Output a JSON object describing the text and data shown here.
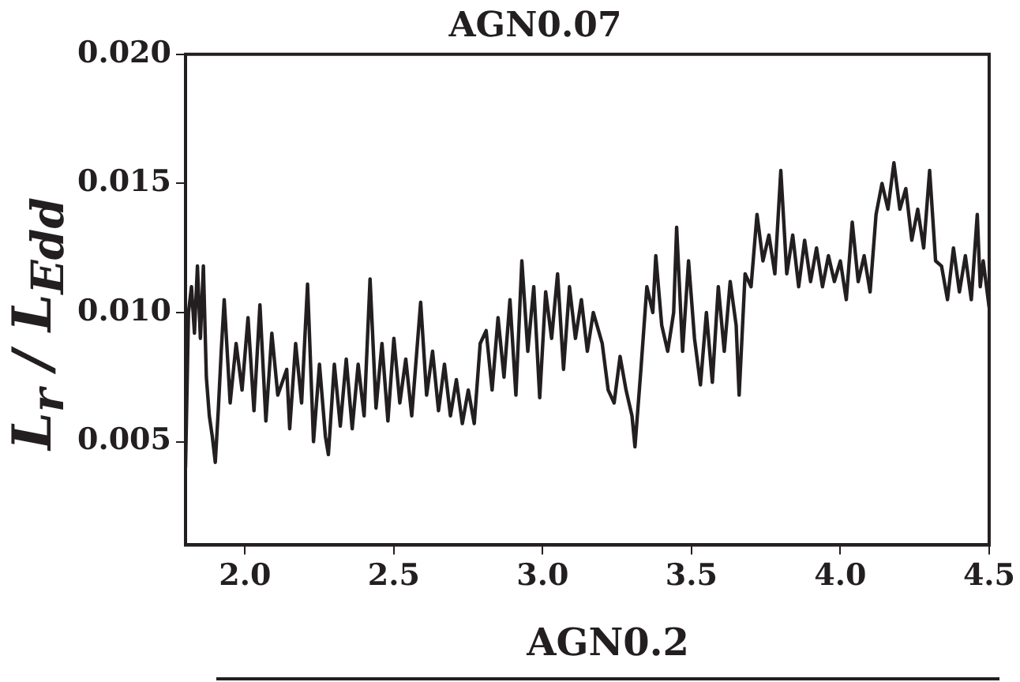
{
  "chart_data": {
    "type": "line",
    "title": "AGN0.07",
    "ylabel": "L$_{r}$ / L$_{Edd}$",
    "annotations": [
      "AGN0.2"
    ],
    "xlim": [
      1.8,
      4.5
    ],
    "xticks": [
      {
        "value": 2,
        "label": "2.0"
      },
      {
        "value": 2.5,
        "label": "2.5"
      },
      {
        "value": 3,
        "label": "3.0"
      },
      {
        "value": 3.5,
        "label": "3.5"
      },
      {
        "value": 4,
        "label": "4.0"
      },
      {
        "value": 4.5,
        "label": "4.5"
      }
    ],
    "ylim": [
      0.001,
      0.02
    ],
    "yticks": [
      0.005,
      {
        "value": 0.01,
        "label": "0.010"
      },
      0.015,
      {
        "value": 0.02,
        "label": "0.020"
      }
    ],
    "marker": "none",
    "line_style": "solid",
    "series": [
      {
        "color": "#231f20",
        "x": [
          1.8,
          1.81,
          1.82,
          1.83,
          1.84,
          1.85,
          1.86,
          1.87,
          1.88,
          1.89,
          1.9,
          1.91,
          1.92,
          1.93,
          1.95,
          1.97,
          1.99,
          2.01,
          2.03,
          2.05,
          2.07,
          2.09,
          2.11,
          2.14,
          2.15,
          2.17,
          2.19,
          2.21,
          2.23,
          2.25,
          2.27,
          2.28,
          2.3,
          2.32,
          2.34,
          2.36,
          2.38,
          2.4,
          2.42,
          2.44,
          2.46,
          2.48,
          2.5,
          2.52,
          2.54,
          2.56,
          2.59,
          2.61,
          2.63,
          2.65,
          2.67,
          2.69,
          2.71,
          2.73,
          2.75,
          2.77,
          2.79,
          2.81,
          2.83,
          2.85,
          2.87,
          2.89,
          2.91,
          2.93,
          2.95,
          2.97,
          2.99,
          3.01,
          3.03,
          3.05,
          3.07,
          3.09,
          3.11,
          3.13,
          3.15,
          3.17,
          3.2,
          3.22,
          3.24,
          3.26,
          3.28,
          3.3,
          3.31,
          3.33,
          3.35,
          3.37,
          3.38,
          3.4,
          3.42,
          3.44,
          3.45,
          3.47,
          3.49,
          3.51,
          3.53,
          3.55,
          3.57,
          3.59,
          3.61,
          3.63,
          3.65,
          3.66,
          3.68,
          3.7,
          3.72,
          3.74,
          3.76,
          3.78,
          3.8,
          3.82,
          3.84,
          3.86,
          3.88,
          3.9,
          3.92,
          3.94,
          3.96,
          3.98,
          4.0,
          4.02,
          4.04,
          4.06,
          4.08,
          4.1,
          4.12,
          4.14,
          4.16,
          4.18,
          4.2,
          4.22,
          4.24,
          4.26,
          4.28,
          4.3,
          4.32,
          4.34,
          4.36,
          4.38,
          4.4,
          4.42,
          4.44,
          4.46,
          4.47,
          4.48,
          4.5
        ],
        "values": [
          0.004,
          0.01,
          0.011,
          0.0092,
          0.0118,
          0.009,
          0.0118,
          0.0075,
          0.006,
          0.0052,
          0.0042,
          0.0062,
          0.0085,
          0.0105,
          0.0065,
          0.0088,
          0.007,
          0.0098,
          0.0062,
          0.0103,
          0.0058,
          0.0092,
          0.0068,
          0.0078,
          0.0055,
          0.0088,
          0.0065,
          0.0111,
          0.005,
          0.008,
          0.0052,
          0.0045,
          0.008,
          0.0056,
          0.0082,
          0.0055,
          0.008,
          0.006,
          0.0113,
          0.0063,
          0.0088,
          0.0058,
          0.009,
          0.0065,
          0.0082,
          0.006,
          0.0104,
          0.0068,
          0.0085,
          0.0062,
          0.008,
          0.006,
          0.0074,
          0.0057,
          0.007,
          0.0057,
          0.0088,
          0.0093,
          0.007,
          0.0098,
          0.0075,
          0.0105,
          0.0068,
          0.012,
          0.0085,
          0.011,
          0.0067,
          0.0108,
          0.009,
          0.0115,
          0.0078,
          0.011,
          0.009,
          0.0105,
          0.0085,
          0.01,
          0.0088,
          0.007,
          0.0065,
          0.0083,
          0.007,
          0.006,
          0.0048,
          0.0078,
          0.011,
          0.01,
          0.0122,
          0.0095,
          0.0085,
          0.01,
          0.0133,
          0.0085,
          0.012,
          0.009,
          0.0072,
          0.01,
          0.0073,
          0.011,
          0.0085,
          0.0112,
          0.0095,
          0.0068,
          0.0115,
          0.011,
          0.0138,
          0.012,
          0.013,
          0.0115,
          0.0155,
          0.0115,
          0.013,
          0.011,
          0.0128,
          0.0112,
          0.0125,
          0.011,
          0.0122,
          0.0112,
          0.012,
          0.0105,
          0.0135,
          0.0112,
          0.0122,
          0.0108,
          0.0138,
          0.015,
          0.014,
          0.0158,
          0.014,
          0.0148,
          0.0128,
          0.014,
          0.0125,
          0.0155,
          0.012,
          0.0118,
          0.0105,
          0.0125,
          0.0108,
          0.0122,
          0.0105,
          0.0138,
          0.011,
          0.012,
          0.0102
        ]
      }
    ]
  }
}
